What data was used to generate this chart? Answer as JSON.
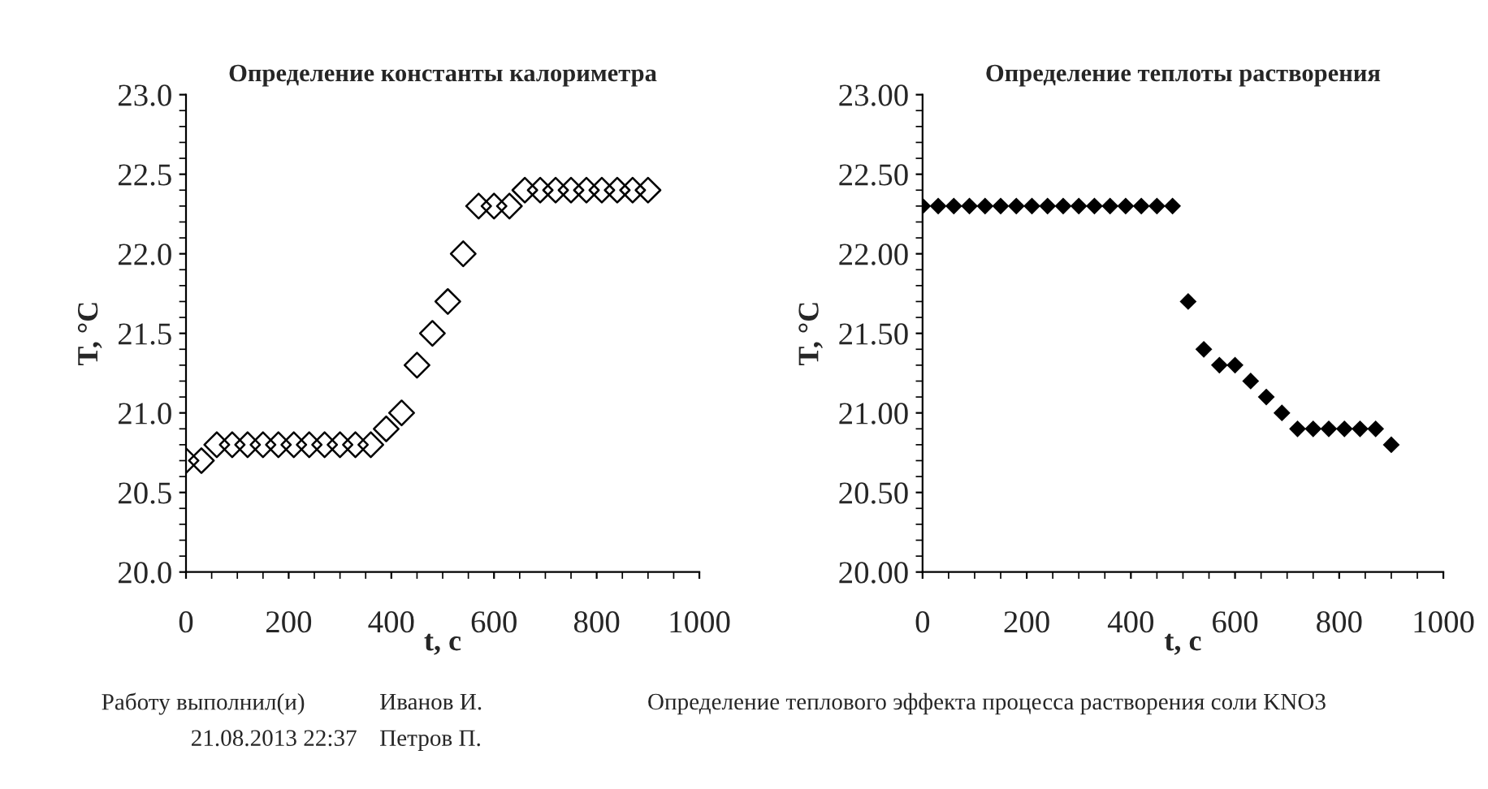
{
  "chart_data": [
    {
      "type": "scatter",
      "title": "Определение константы калориметра",
      "xlabel": "t, c",
      "ylabel": "T, °C",
      "marker": "diamond",
      "grid": false,
      "legend": false,
      "x": [
        0,
        30,
        60,
        90,
        120,
        150,
        180,
        210,
        240,
        270,
        300,
        330,
        360,
        390,
        420,
        450,
        480,
        510,
        540,
        570,
        600,
        630,
        660,
        690,
        720,
        750,
        780,
        810,
        840,
        870,
        900
      ],
      "series": [
        {
          "color": "#000000",
          "values": [
            20.7,
            20.7,
            20.8,
            20.8,
            20.8,
            20.8,
            20.8,
            20.8,
            20.8,
            20.8,
            20.8,
            20.8,
            20.8,
            20.9,
            21.0,
            21.3,
            21.5,
            21.7,
            22.0,
            22.3,
            22.3,
            22.3,
            22.4,
            22.4,
            22.4,
            22.4,
            22.4,
            22.4,
            22.4,
            22.4,
            22.4
          ]
        }
      ],
      "xlim": [
        0,
        1000
      ],
      "xticks": [
        0,
        200,
        400,
        600,
        800,
        1000
      ],
      "ylim": [
        20,
        23
      ],
      "yticks": [
        {
          "value": 20,
          "label": "20.0"
        },
        {
          "value": 20.5,
          "label": "20.5"
        },
        {
          "value": 21,
          "label": "21.0"
        },
        {
          "value": 21.5,
          "label": "21.5"
        },
        {
          "value": 22,
          "label": "22.0"
        },
        {
          "value": 22.5,
          "label": "22.5"
        },
        {
          "value": 23,
          "label": "23.0"
        }
      ]
    },
    {
      "type": "scatter",
      "title": "Определение теплоты растворения",
      "xlabel": "t, c",
      "ylabel": "T, °C",
      "marker": "diamond",
      "grid": false,
      "legend": false,
      "x": [
        0,
        30,
        60,
        90,
        120,
        150,
        180,
        210,
        240,
        270,
        300,
        330,
        360,
        390,
        420,
        450,
        480,
        510,
        540,
        570,
        600,
        630,
        660,
        690,
        720,
        750,
        780,
        810,
        840,
        870,
        900
      ],
      "series": [
        {
          "color": "#000000",
          "values": [
            22.3,
            22.3,
            22.3,
            22.3,
            22.3,
            22.3,
            22.3,
            22.3,
            22.3,
            22.3,
            22.3,
            22.3,
            22.3,
            22.3,
            22.3,
            22.3,
            22.3,
            21.7,
            21.4,
            21.3,
            21.3,
            21.2,
            21.1,
            21.0,
            20.9,
            20.9,
            20.9,
            20.9,
            20.9,
            20.9,
            20.8
          ]
        }
      ],
      "xlim": [
        0,
        1000
      ],
      "xticks": [
        0,
        200,
        400,
        600,
        800,
        1000
      ],
      "ylim": [
        20,
        23
      ],
      "yticks": [
        {
          "value": 20,
          "label": "20.00"
        },
        {
          "value": 20.5,
          "label": "20.50"
        },
        {
          "value": 21,
          "label": "21.00"
        },
        {
          "value": 21.5,
          "label": "21.50"
        },
        {
          "value": 22,
          "label": "22.00"
        },
        {
          "value": 22.5,
          "label": "22.50"
        },
        {
          "value": 23,
          "label": "23.00"
        }
      ]
    },
    {
      "type": "other",
      "annotations": [
        "Работу выполнил(и)",
        "Иванов И.",
        "Определение теплового эффекта процесса растворения соли KNO3",
        "21.08.2013 22:37",
        "Петров П."
      ]
    }
  ]
}
